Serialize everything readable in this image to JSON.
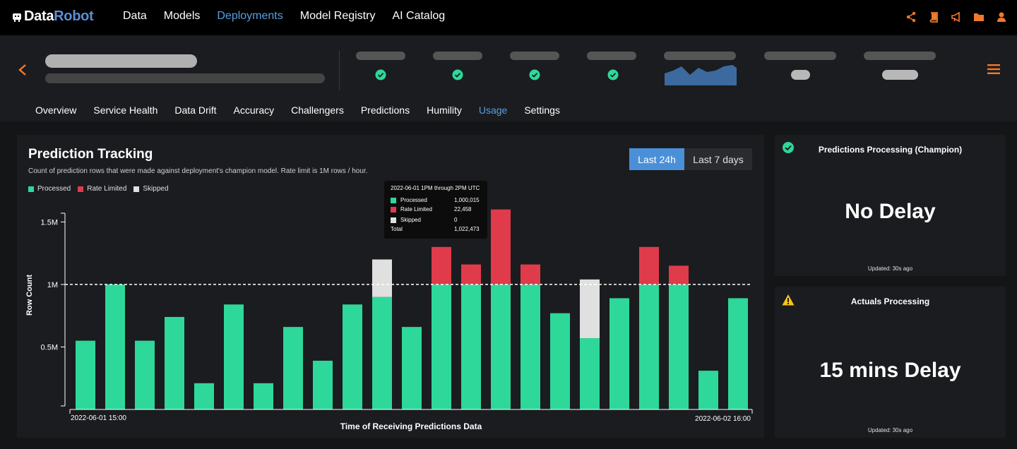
{
  "brand": {
    "part1": "Data",
    "part2": "Robot"
  },
  "nav": {
    "items": [
      {
        "label": "Data",
        "active": false
      },
      {
        "label": "Models",
        "active": false
      },
      {
        "label": "Deployments",
        "active": true
      },
      {
        "label": "Model Registry",
        "active": false
      },
      {
        "label": "AI Catalog",
        "active": false
      }
    ],
    "icons": [
      "share-icon",
      "book-icon",
      "megaphone-icon",
      "folder-icon",
      "user-icon"
    ]
  },
  "tabs": [
    {
      "label": "Overview",
      "active": false
    },
    {
      "label": "Service Health",
      "active": false
    },
    {
      "label": "Data Drift",
      "active": false
    },
    {
      "label": "Accuracy",
      "active": false
    },
    {
      "label": "Challengers",
      "active": false
    },
    {
      "label": "Predictions",
      "active": false
    },
    {
      "label": "Humility",
      "active": false
    },
    {
      "label": "Usage",
      "active": true
    },
    {
      "label": "Settings",
      "active": false
    }
  ],
  "tracking": {
    "title": "Prediction Tracking",
    "subtitle": "Count of prediction rows  that were made against deployment's champion model. Rate limit is 1M rows / hour.",
    "range_active": "Last 24h",
    "range_other": "Last 7 days",
    "legend": [
      {
        "label": "Processed",
        "color": "#2dd89a"
      },
      {
        "label": "Rate Limited",
        "color": "#e03b4b"
      },
      {
        "label": "Skipped",
        "color": "#e0e0e0"
      }
    ]
  },
  "tooltip": {
    "title": "2022-06-01 1PM through 2PM UTC",
    "rows": [
      {
        "label": "Processed",
        "value": "1,000,015",
        "color": "#2dd89a"
      },
      {
        "label": "Rate Limited",
        "value": "22,458",
        "color": "#e03b4b"
      },
      {
        "label": "Skipped",
        "value": "0",
        "color": "#e0e0e0"
      }
    ],
    "total_label": "Total",
    "total_value": "1,022,473"
  },
  "chart_data": {
    "type": "bar",
    "stacked": true,
    "xlabel": "Time of Receiving Predictions Data",
    "ylabel": "Row Count",
    "x_start_label": "2022-06-01 15:00",
    "x_end_label": "2022-06-02 16:00",
    "yticks": [
      {
        "label": "0.5M",
        "value": 0.5
      },
      {
        "label": "1M",
        "value": 1.0
      },
      {
        "label": "1.5M",
        "value": 1.5
      }
    ],
    "ylim": [
      0,
      1.57
    ],
    "reference_line": {
      "value": 1.0,
      "style": "dashed"
    },
    "series": [
      {
        "name": "Processed",
        "color": "#2dd89a",
        "values": [
          0.55,
          1.0,
          0.55,
          0.74,
          0.21,
          0.84,
          0.21,
          0.66,
          0.39,
          0.84,
          0.9,
          0.66,
          1.0,
          1.0,
          1.0,
          1.0,
          0.77,
          0.57,
          0.89,
          1.0,
          1.0,
          0.31,
          0.89
        ]
      },
      {
        "name": "Rate Limited",
        "color": "#e03b4b",
        "values": [
          0,
          0,
          0,
          0,
          0,
          0,
          0,
          0,
          0,
          0,
          0,
          0,
          0.3,
          0.16,
          0.6,
          0.16,
          0,
          0,
          0,
          0.3,
          0.15,
          0,
          0
        ]
      },
      {
        "name": "Skipped",
        "color": "#e0e0e0",
        "values": [
          0,
          0,
          0,
          0,
          0,
          0,
          0,
          0,
          0,
          0,
          0.3,
          0,
          0,
          0,
          0,
          0,
          0,
          0.47,
          0,
          0,
          0,
          0,
          0
        ]
      }
    ],
    "grid": false
  },
  "cards": [
    {
      "title": "Predictions Processing (Champion)",
      "value": "No Delay",
      "updated": "Updated: 30s ago",
      "icon": "check-circle-icon",
      "icon_color": "#2dd89a"
    },
    {
      "title": "Actuals Processing",
      "value": "15 mins Delay",
      "updated": "Updated: 30s ago",
      "icon": "warning-icon",
      "icon_color": "#f5c518"
    }
  ],
  "colors": {
    "accent": "#4a90d9",
    "orange": "#f07a2a",
    "processed": "#2dd89a",
    "rate_limited": "#e03b4b",
    "skipped": "#e0e0e0"
  }
}
